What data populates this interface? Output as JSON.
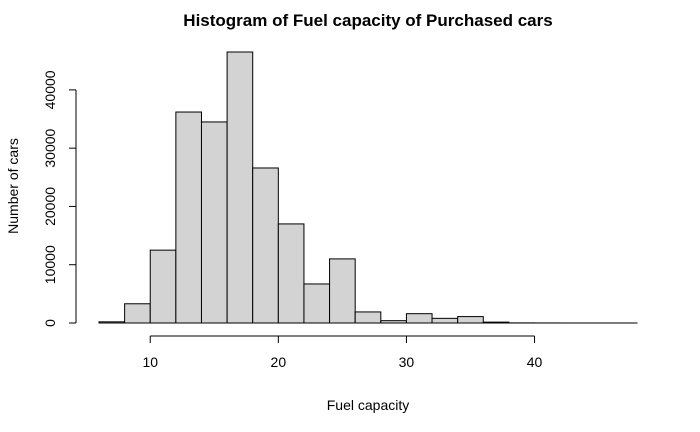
{
  "chart_data": {
    "type": "bar",
    "title": "Histogram of Fuel capacity of Purchased cars",
    "xlabel": "Fuel capacity",
    "ylabel": "Number of cars",
    "xlim": [
      6,
      48
    ],
    "ylim": [
      0,
      46500
    ],
    "x_ticks": [
      10,
      20,
      30,
      40
    ],
    "y_ticks": [
      0,
      10000,
      20000,
      30000,
      40000
    ],
    "grid": false,
    "bins": [
      {
        "x0": 6,
        "x1": 8,
        "count": 200
      },
      {
        "x0": 8,
        "x1": 10,
        "count": 3300
      },
      {
        "x0": 10,
        "x1": 12,
        "count": 12500
      },
      {
        "x0": 12,
        "x1": 14,
        "count": 36200
      },
      {
        "x0": 14,
        "x1": 16,
        "count": 34500
      },
      {
        "x0": 16,
        "x1": 18,
        "count": 46500
      },
      {
        "x0": 18,
        "x1": 20,
        "count": 26600
      },
      {
        "x0": 20,
        "x1": 22,
        "count": 17000
      },
      {
        "x0": 22,
        "x1": 24,
        "count": 6700
      },
      {
        "x0": 24,
        "x1": 26,
        "count": 11000
      },
      {
        "x0": 26,
        "x1": 28,
        "count": 1900
      },
      {
        "x0": 28,
        "x1": 30,
        "count": 400
      },
      {
        "x0": 30,
        "x1": 32,
        "count": 1600
      },
      {
        "x0": 32,
        "x1": 34,
        "count": 800
      },
      {
        "x0": 34,
        "x1": 36,
        "count": 1100
      },
      {
        "x0": 36,
        "x1": 38,
        "count": 150
      },
      {
        "x0": 38,
        "x1": 40,
        "count": 20
      },
      {
        "x0": 40,
        "x1": 42,
        "count": 10
      },
      {
        "x0": 42,
        "x1": 44,
        "count": 5
      },
      {
        "x0": 44,
        "x1": 46,
        "count": 5
      },
      {
        "x0": 46,
        "x1": 48,
        "count": 5
      }
    ]
  }
}
